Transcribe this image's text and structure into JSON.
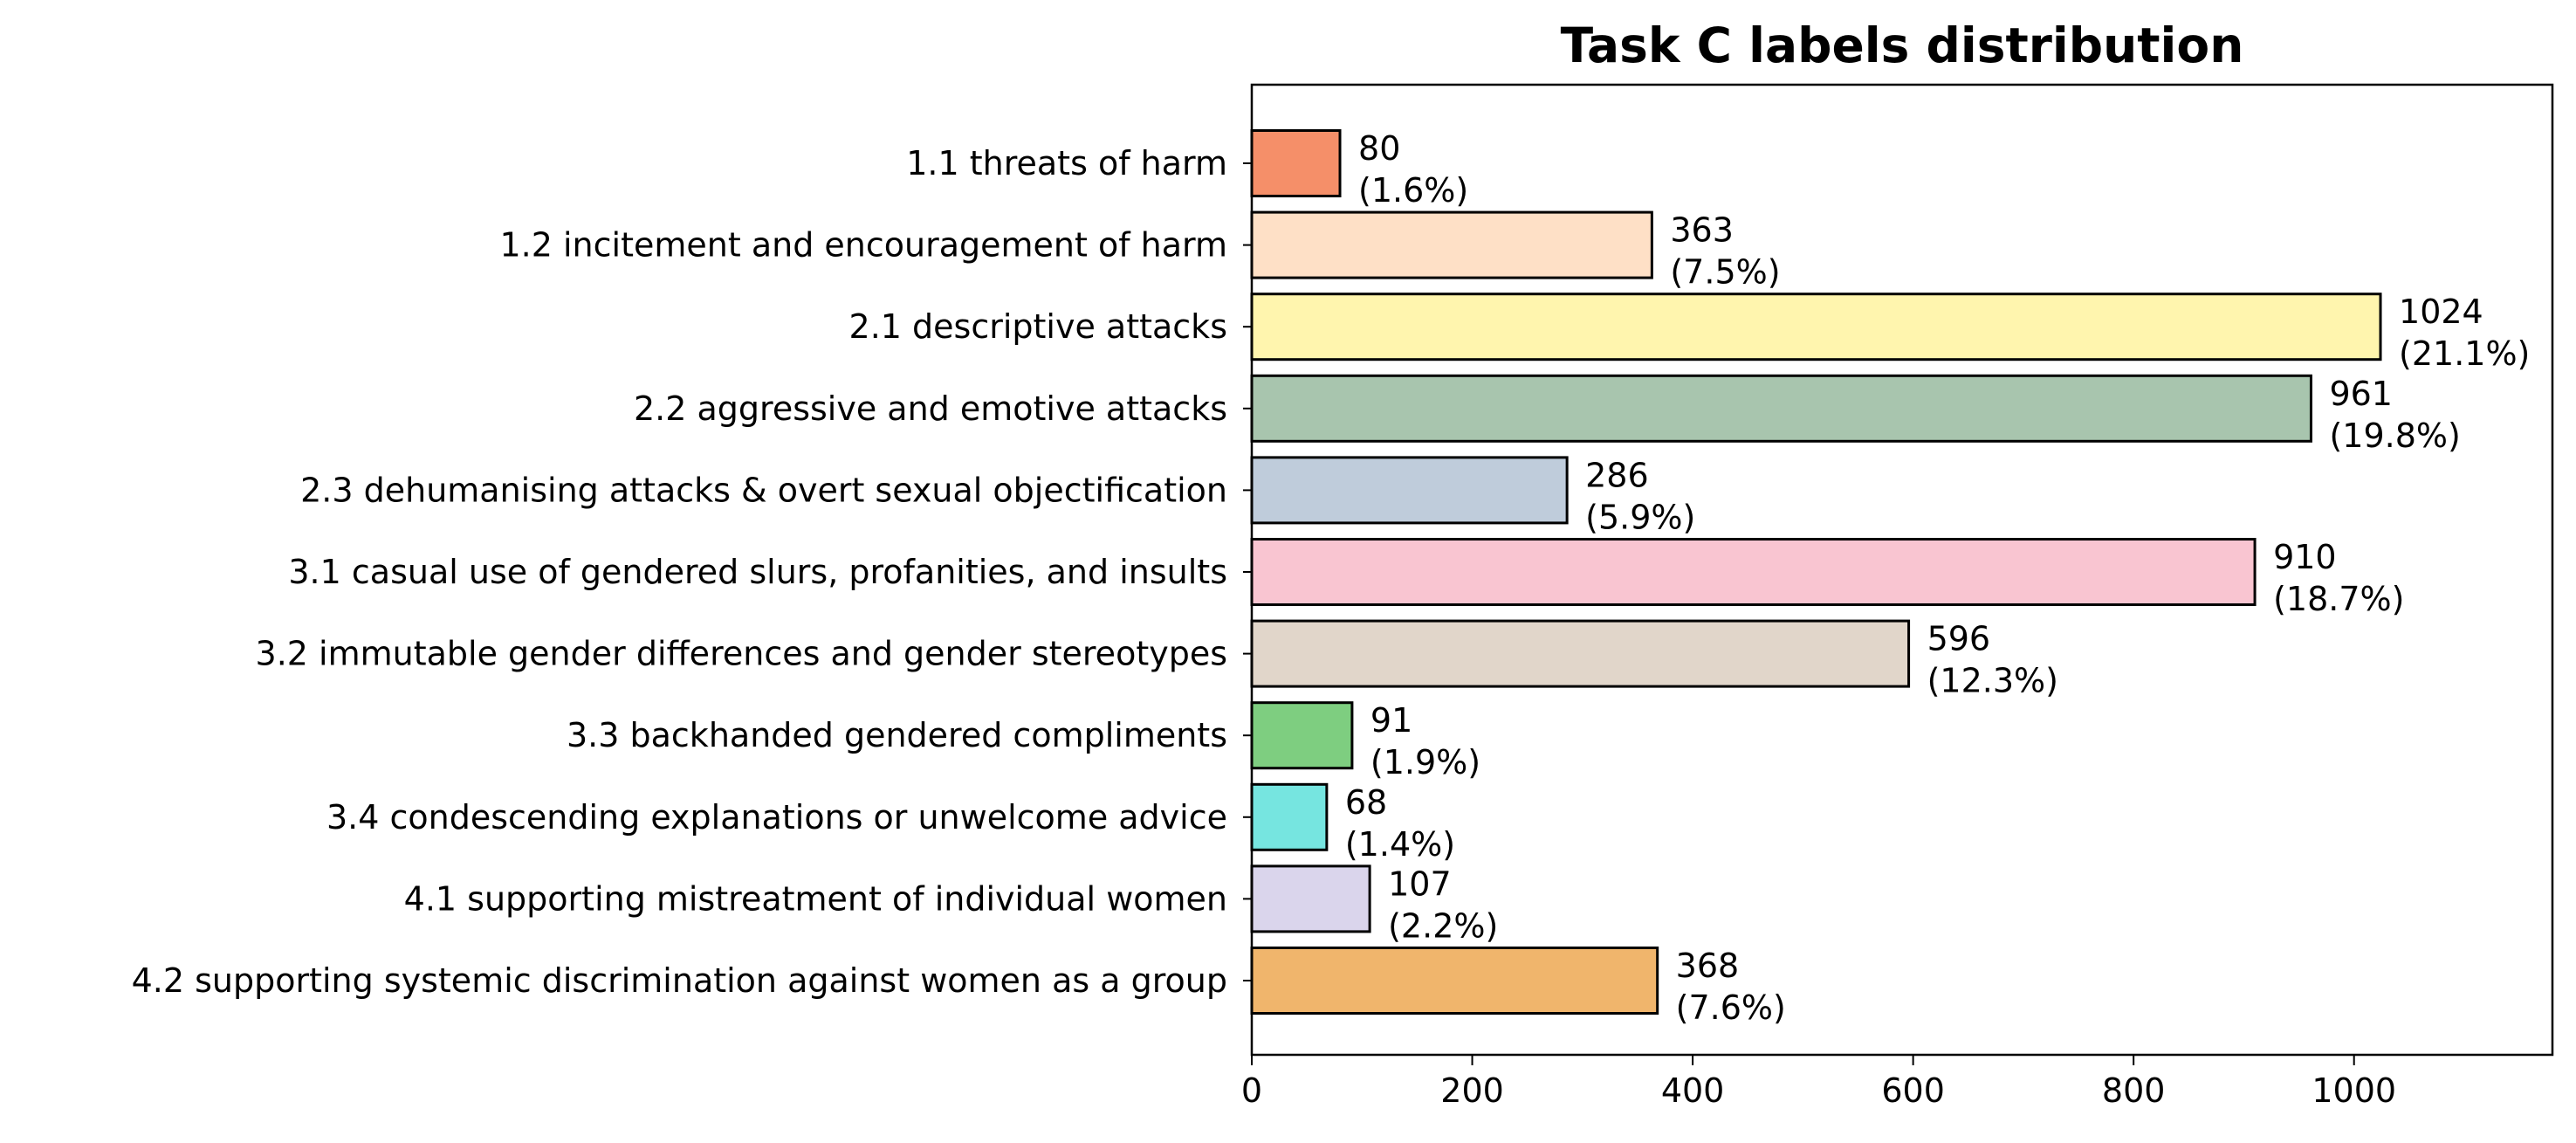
{
  "chart_data": {
    "type": "bar",
    "orientation": "horizontal",
    "title": "Task C labels distribution",
    "xlabel": "",
    "ylabel": "",
    "xlim": [
      0,
      1180
    ],
    "xticks": [
      0,
      200,
      400,
      600,
      800,
      1000
    ],
    "grid": false,
    "categories": [
      "1.1 threats of harm",
      "1.2 incitement and encouragement of harm",
      "2.1 descriptive attacks",
      "2.2 aggressive and emotive attacks",
      "2.3 dehumanising attacks & overt sexual objectification",
      "3.1 casual use of gendered slurs, profanities, and insults",
      "3.2 immutable gender differences and gender stereotypes",
      "3.3 backhanded gendered compliments",
      "3.4 condescending explanations or unwelcome advice",
      "4.1 supporting mistreatment of individual women",
      "4.2 supporting systemic discrimination against women as a group"
    ],
    "values": [
      80,
      363,
      1024,
      961,
      286,
      910,
      596,
      91,
      68,
      107,
      368
    ],
    "percent_labels": [
      "(1.6%)",
      "(7.5%)",
      "(21.1%)",
      "(19.8%)",
      "(5.9%)",
      "(18.7%)",
      "(12.3%)",
      "(1.9%)",
      "(1.4%)",
      "(2.2%)",
      "(7.6%)"
    ],
    "colors": [
      "#f58f69",
      "#fee0c6",
      "#fff5ae",
      "#a8c5ae",
      "#bfccdb",
      "#f9c5d1",
      "#e1d6ca",
      "#7ece80",
      "#76e5e0",
      "#dad5ec",
      "#f0b56c"
    ]
  }
}
